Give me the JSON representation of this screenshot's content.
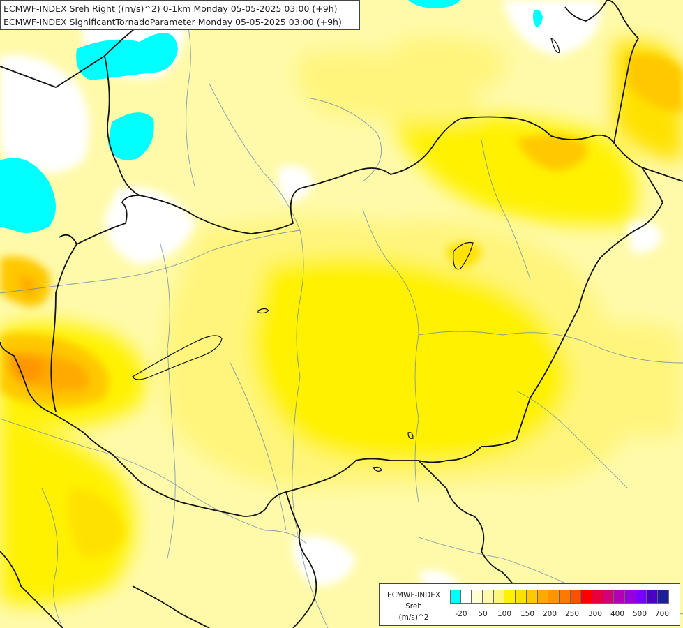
{
  "titles": {
    "line1": "ECMWF-INDEX Sreh Right ((m/s)^2) 0-1km Monday 05-05-2025 03:00 (+9h)",
    "line2": "ECMWF-INDEX SignificantTornadoParameter Monday 05-05-2025 03:00 (+9h)"
  },
  "legend": {
    "title": "ECMWF-INDEX",
    "variable": "Sreh",
    "unit": "(m/s)^2",
    "colors": [
      "#00ffff",
      "#ffffff",
      "#fffdd2",
      "#fffaaa",
      "#fff57d",
      "#fff100",
      "#ffe100",
      "#ffc800",
      "#ffaa00",
      "#ff9600",
      "#ff7800",
      "#ff5000",
      "#ff0000",
      "#e6003c",
      "#d20078",
      "#b400b4",
      "#9600dc",
      "#7800ff",
      "#4b00c8",
      "#1e1e96"
    ],
    "ticks": [
      "-20",
      "50",
      "100",
      "150",
      "200",
      "250",
      "300",
      "400",
      "500",
      "700"
    ]
  }
}
